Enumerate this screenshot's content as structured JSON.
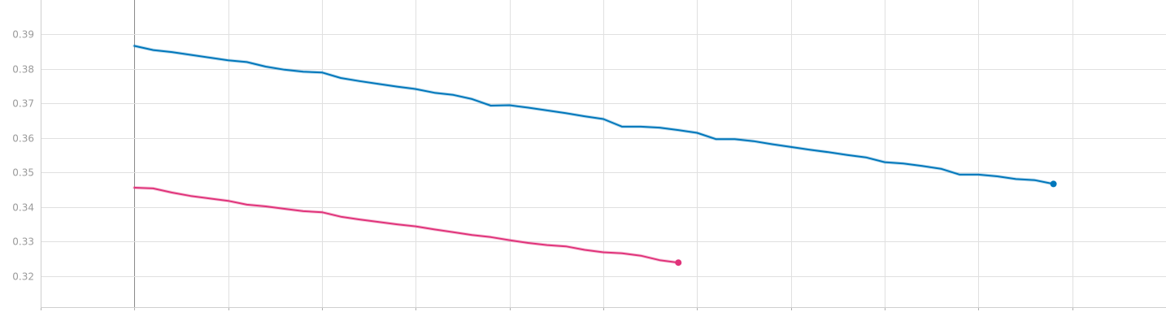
{
  "chart_data": {
    "type": "line",
    "title": "",
    "xlabel": "",
    "ylabel": "",
    "xlim": [
      -5,
      55
    ],
    "ylim": [
      0.311,
      0.4
    ],
    "x_ticks": [
      0,
      5,
      10,
      15,
      20,
      25,
      30,
      35,
      40,
      45,
      50,
      55
    ],
    "y_ticks": [
      0.32,
      0.33,
      0.34,
      0.35,
      0.36,
      0.37,
      0.38,
      0.39
    ],
    "y_tick_labels": [
      "0.32",
      "0.33",
      "0.34",
      "0.35",
      "0.36",
      "0.37",
      "0.38",
      "0.39"
    ],
    "grid": true,
    "series": [
      {
        "color": "#0077bb",
        "x": [
          0,
          1,
          2,
          3,
          4,
          5,
          6,
          7,
          8,
          9,
          10,
          11,
          12,
          13,
          14,
          15,
          16,
          17,
          18,
          19,
          20,
          21,
          22,
          23,
          24,
          25,
          26,
          27,
          28,
          29,
          30,
          31,
          32,
          33,
          34,
          35,
          36,
          37,
          38,
          39,
          40,
          41,
          42,
          43,
          44,
          45,
          46,
          47,
          48,
          49
        ],
        "y": [
          0.3867,
          0.3855,
          0.3849,
          0.3841,
          0.3833,
          0.3825,
          0.382,
          0.3807,
          0.3798,
          0.3792,
          0.379,
          0.3774,
          0.3765,
          0.3757,
          0.3749,
          0.3742,
          0.3731,
          0.3725,
          0.3713,
          0.3694,
          0.3695,
          0.3688,
          0.368,
          0.3672,
          0.3663,
          0.3655,
          0.3633,
          0.3633,
          0.363,
          0.3623,
          0.3615,
          0.3597,
          0.3597,
          0.3591,
          0.3582,
          0.3574,
          0.3566,
          0.3559,
          0.3551,
          0.3544,
          0.353,
          0.3526,
          0.3519,
          0.3511,
          0.3494,
          0.3494,
          0.3489,
          0.3481,
          0.3478,
          0.3467
        ]
      },
      {
        "color": "#e0337a",
        "x": [
          0,
          1,
          2,
          3,
          4,
          5,
          6,
          7,
          8,
          9,
          10,
          11,
          12,
          13,
          14,
          15,
          16,
          17,
          18,
          19,
          20,
          21,
          22,
          23,
          24,
          25,
          26,
          27,
          28,
          29
        ],
        "y": [
          0.3456,
          0.3454,
          0.3442,
          0.3432,
          0.3425,
          0.3418,
          0.3407,
          0.3402,
          0.3395,
          0.3388,
          0.3385,
          0.3372,
          0.3364,
          0.3357,
          0.335,
          0.3344,
          0.3335,
          0.3327,
          0.3319,
          0.3313,
          0.3304,
          0.3296,
          0.329,
          0.3286,
          0.3276,
          0.3269,
          0.3266,
          0.3259,
          0.3246,
          0.3239
        ]
      }
    ]
  }
}
